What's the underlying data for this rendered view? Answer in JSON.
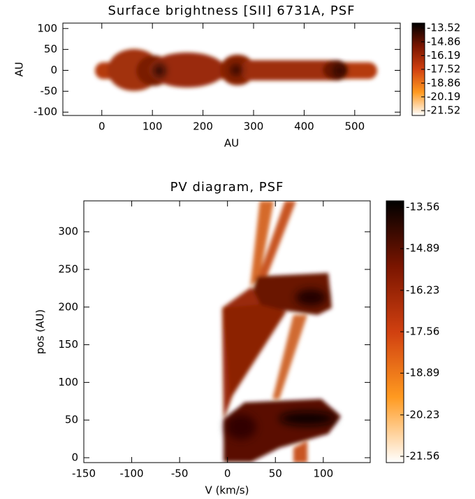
{
  "chart_data": [
    {
      "type": "image",
      "title": "Surface brightness [SII] 6731A, PSF",
      "x_label": "AU",
      "y_label": "AU",
      "xlim": [
        -77,
        590
      ],
      "xticks": [
        0,
        100,
        200,
        300,
        400,
        500
      ],
      "ylim": [
        -108,
        113
      ],
      "yticks": [
        -100,
        -50,
        0,
        50,
        100
      ],
      "clim": [
        -21.52,
        -13.52
      ],
      "cticks": [
        -13.52,
        -14.86,
        -16.19,
        -17.52,
        -18.86,
        -20.19,
        -21.52
      ]
    },
    {
      "type": "image",
      "title": "PV diagram, PSF",
      "x_label": "V (km/s)",
      "y_label": "pos (AU)",
      "xlim": [
        -150,
        149
      ],
      "xticks": [
        -150,
        -100,
        -50,
        0,
        50,
        100
      ],
      "ylim": [
        -6.5,
        341
      ],
      "yticks": [
        0,
        50,
        100,
        150,
        200,
        250,
        300
      ],
      "clim": [
        -21.56,
        -13.56
      ],
      "cticks": [
        -13.56,
        -14.89,
        -16.23,
        -17.56,
        -18.89,
        -20.23,
        -21.56
      ]
    }
  ]
}
